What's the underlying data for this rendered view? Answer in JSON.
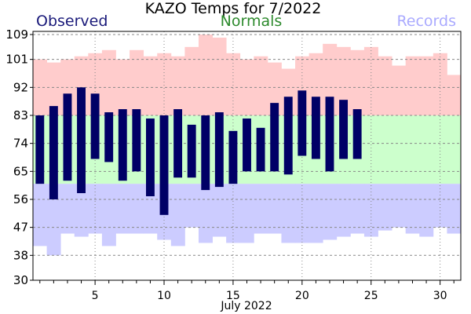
{
  "chart_data": {
    "type": "bar",
    "title": "KAZO Temps for 7/2022",
    "xlabel": "July 2022",
    "ylabel": "",
    "ylim": [
      30,
      110
    ],
    "xlim": [
      0.5,
      31.5
    ],
    "yticks": [
      30,
      38,
      47,
      56,
      65,
      74,
      83,
      92,
      101,
      109
    ],
    "xticks": [
      5,
      10,
      15,
      20,
      25,
      30
    ],
    "grid": true,
    "legend": {
      "observed": "Observed",
      "normals": "Normals",
      "records": "Records"
    },
    "colors": {
      "observed": "#000066",
      "normals": "#ccffcc",
      "records_high": "#ffcccc",
      "records_low": "#ccccff",
      "legend_observed": "#1a1a7a",
      "legend_normals": "#2d8a2d",
      "legend_records": "#aaaaff"
    },
    "days": [
      1,
      2,
      3,
      4,
      5,
      6,
      7,
      8,
      9,
      10,
      11,
      12,
      13,
      14,
      15,
      16,
      17,
      18,
      19,
      20,
      21,
      22,
      23,
      24,
      25,
      26,
      27,
      28,
      29,
      30,
      31
    ],
    "record_high": [
      101,
      100,
      101,
      102,
      103,
      104,
      101,
      104,
      102,
      103,
      102,
      105,
      109,
      108,
      103,
      101,
      102,
      100,
      98,
      102,
      103,
      106,
      105,
      104,
      105,
      102,
      99,
      102,
      102,
      103,
      96
    ],
    "record_low": [
      41,
      38,
      45,
      44,
      45,
      41,
      45,
      45,
      45,
      43,
      41,
      47,
      42,
      44,
      42,
      42,
      45,
      45,
      42,
      42,
      42,
      43,
      44,
      45,
      44,
      46,
      47,
      45,
      44,
      47,
      45
    ],
    "normal_high": 83,
    "normal_low": 61,
    "series": [
      {
        "name": "Observed",
        "high": [
          83,
          86,
          90,
          92,
          90,
          84,
          85,
          85,
          82,
          83,
          85,
          80,
          83,
          84,
          78,
          82,
          79,
          87,
          89,
          91,
          89,
          89,
          88,
          85
        ],
        "low": [
          61,
          56,
          62,
          58,
          69,
          68,
          62,
          65,
          57,
          51,
          63,
          63,
          59,
          60,
          61,
          65,
          65,
          65,
          64,
          70,
          69,
          65,
          69,
          69
        ]
      }
    ]
  }
}
